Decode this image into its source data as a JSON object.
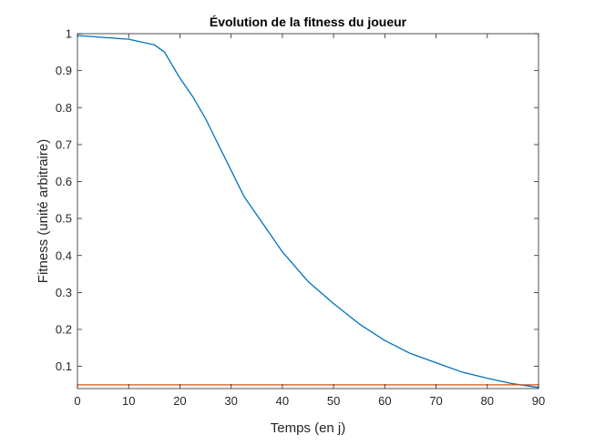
{
  "chart_data": {
    "type": "line",
    "title": "Évolution de la fitness du joueur",
    "xlabel": "Temps (en j)",
    "ylabel": "Fitness (unité arbitraire)",
    "xlim": [
      0,
      90
    ],
    "ylim": [
      0.04,
      1
    ],
    "x_ticks": [
      0,
      10,
      20,
      30,
      40,
      50,
      60,
      70,
      80,
      90
    ],
    "x_tick_labels": [
      "0",
      "10",
      "20",
      "30",
      "40",
      "50",
      "60",
      "70",
      "80",
      "90"
    ],
    "y_ticks": [
      0.1,
      0.2,
      0.3,
      0.4,
      0.5,
      0.6,
      0.7,
      0.8,
      0.9,
      1
    ],
    "y_tick_labels": [
      "0.1",
      "0.2",
      "0.3",
      "0.4",
      "0.5",
      "0.6",
      "0.7",
      "0.8",
      "0.9",
      "1"
    ],
    "grid": false,
    "legend": "none",
    "series": [
      {
        "color": "#0072BD",
        "x": [
          0,
          5,
          10,
          15,
          17,
          20,
          22.5,
          25,
          27.5,
          30,
          32.5,
          35,
          40,
          45,
          50,
          55,
          60,
          65,
          70,
          75,
          80,
          85,
          90
        ],
        "y": [
          0.995,
          0.99,
          0.985,
          0.97,
          0.95,
          0.88,
          0.83,
          0.77,
          0.7,
          0.63,
          0.56,
          0.51,
          0.41,
          0.33,
          0.27,
          0.215,
          0.17,
          0.135,
          0.11,
          0.085,
          0.068,
          0.053,
          0.043
        ]
      },
      {
        "color": "#D95319",
        "x": [
          0,
          90
        ],
        "y": [
          0.05,
          0.05
        ]
      }
    ]
  }
}
